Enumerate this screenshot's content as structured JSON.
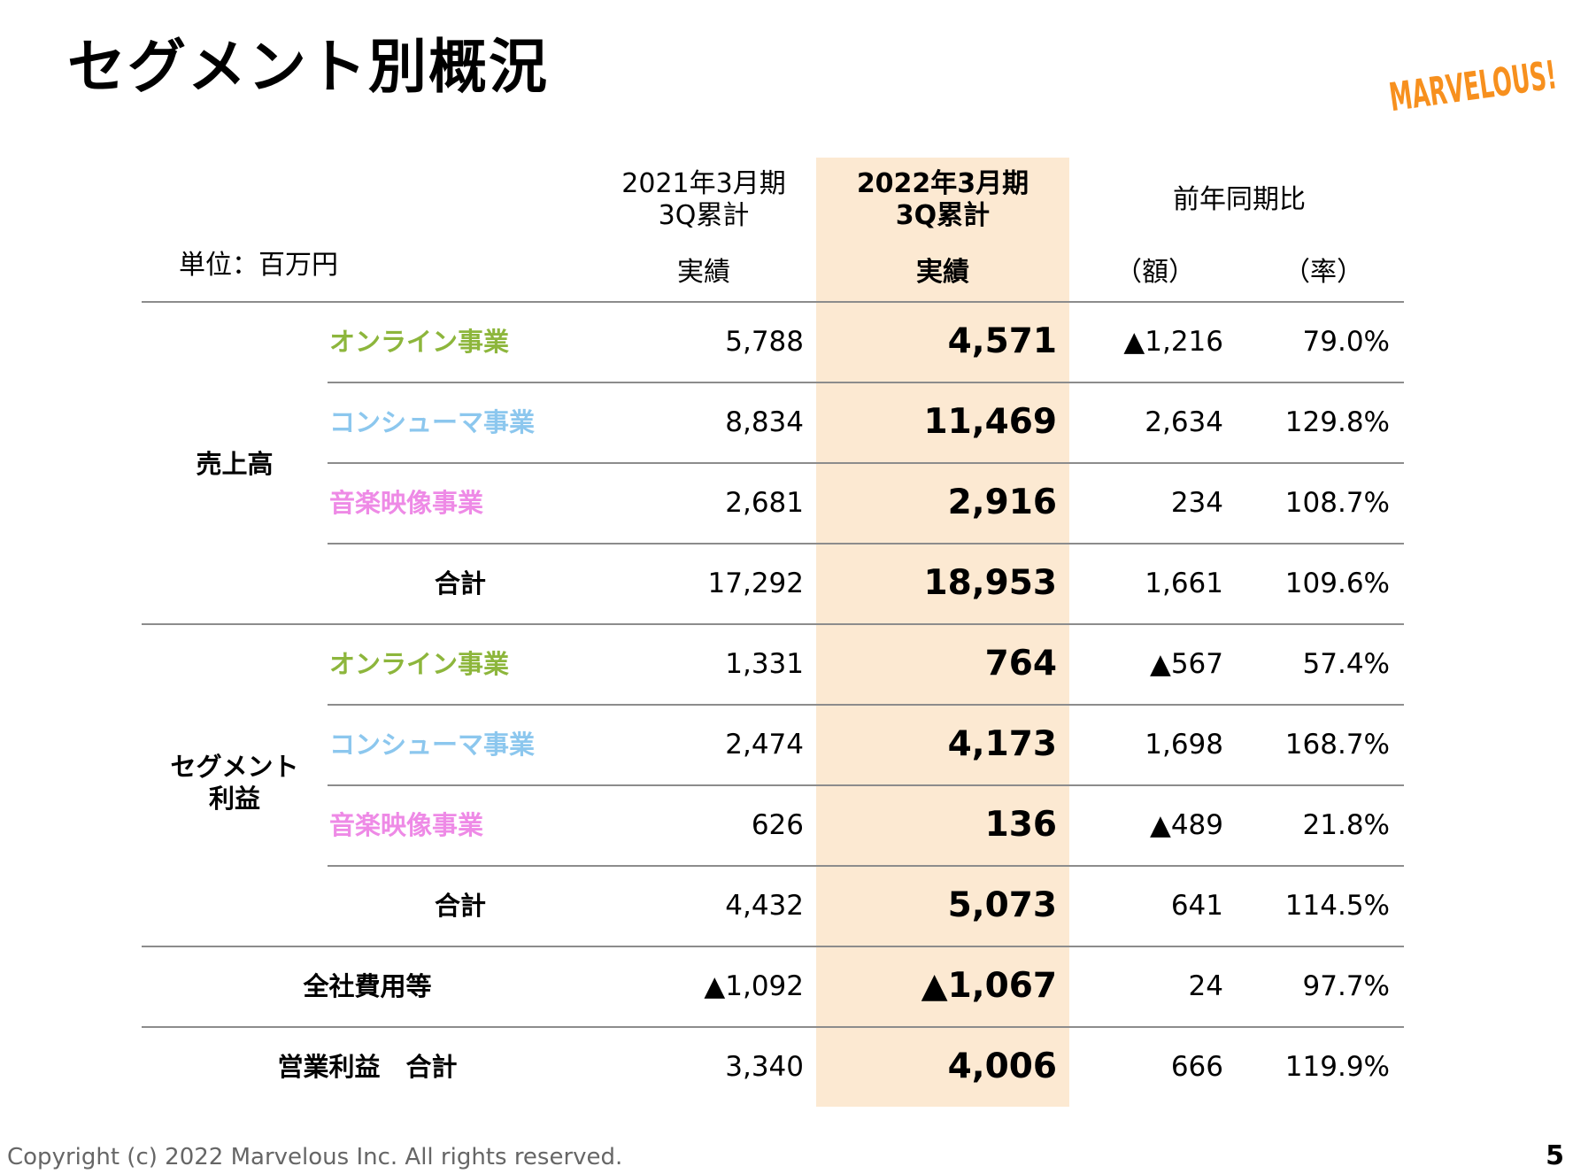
{
  "title": "セグメント別概況",
  "logo_text": "MARVELOUS!",
  "colors": {
    "brand_orange": "#F7901E",
    "highlight": "#FCE9D2",
    "online": "#8DB63C",
    "consumer": "#8CC7EE",
    "music": "#EE8AE6"
  },
  "unit": "単位：百万円",
  "headers": {
    "prev_year": "2021年3月期",
    "prev_q": "3Q累計",
    "curr_year": "2022年3月期",
    "curr_q": "3Q累計",
    "yoy": "前年同期比",
    "actual_prev": "実績",
    "actual_curr": "実績",
    "diff": "（額）",
    "ratio": "（率）"
  },
  "groups": {
    "sales": "売上高",
    "segment_line1": "セグメント",
    "segment_line2": "利益"
  },
  "rows": [
    {
      "label": "オンライン事業",
      "prev": "5,788",
      "curr": "4,571",
      "diff": "▲1,216",
      "ratio": "79.0%"
    },
    {
      "label": "コンシューマ事業",
      "prev": "8,834",
      "curr": "11,469",
      "diff": "2,634",
      "ratio": "129.8%"
    },
    {
      "label": "音楽映像事業",
      "prev": "2,681",
      "curr": "2,916",
      "diff": "234",
      "ratio": "108.7%"
    },
    {
      "label": "合計",
      "prev": "17,292",
      "curr": "18,953",
      "diff": "1,661",
      "ratio": "109.6%"
    },
    {
      "label": "オンライン事業",
      "prev": "1,331",
      "curr": "764",
      "diff": "▲567",
      "ratio": "57.4%"
    },
    {
      "label": "コンシューマ事業",
      "prev": "2,474",
      "curr": "4,173",
      "diff": "1,698",
      "ratio": "168.7%"
    },
    {
      "label": "音楽映像事業",
      "prev": "626",
      "curr": "136",
      "diff": "▲489",
      "ratio": "21.8%"
    },
    {
      "label": "合計",
      "prev": "4,432",
      "curr": "5,073",
      "diff": "641",
      "ratio": "114.5%"
    },
    {
      "label": "全社費用等",
      "prev": "▲1,092",
      "curr": "▲1,067",
      "diff": "24",
      "ratio": "97.7%"
    },
    {
      "label": "営業利益　合計",
      "prev": "3,340",
      "curr": "4,006",
      "diff": "666",
      "ratio": "119.9%"
    }
  ],
  "footer": "Copyright (c) 2022 Marvelous Inc. All rights reserved.",
  "page_number": "5"
}
